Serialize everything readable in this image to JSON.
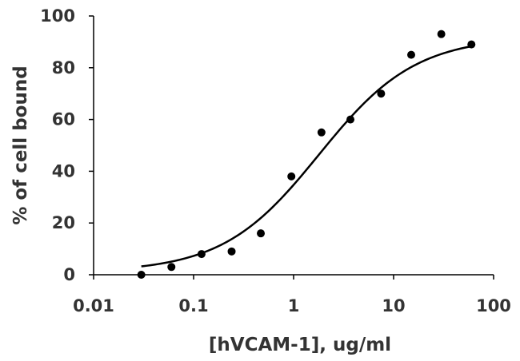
{
  "chart_data": {
    "type": "scatter",
    "xscale": "log",
    "xlim": [
      0.01,
      100
    ],
    "ylim": [
      0,
      100
    ],
    "xticks": [
      0.01,
      0.1,
      1,
      10,
      100
    ],
    "xtick_labels": [
      "0.01",
      "0.1",
      "1",
      "10",
      "100"
    ],
    "yticks": [
      0,
      20,
      40,
      60,
      80,
      100
    ],
    "ytick_labels": [
      "0",
      "20",
      "40",
      "60",
      "80",
      "100"
    ],
    "xlabel": "[hVCAM-1], ug/ml",
    "ylabel": "% of cell bound",
    "grid": false,
    "legend": "none",
    "series": [
      {
        "points": [
          {
            "x": 0.03,
            "y": 0
          },
          {
            "x": 0.06,
            "y": 3
          },
          {
            "x": 0.12,
            "y": 8
          },
          {
            "x": 0.24,
            "y": 9
          },
          {
            "x": 0.47,
            "y": 16
          },
          {
            "x": 0.95,
            "y": 38
          },
          {
            "x": 1.9,
            "y": 55
          },
          {
            "x": 3.7,
            "y": 60
          },
          {
            "x": 7.5,
            "y": 70
          },
          {
            "x": 15,
            "y": 85
          },
          {
            "x": 30,
            "y": 93
          },
          {
            "x": 60,
            "y": 89
          }
        ]
      }
    ],
    "fit_curve": {
      "type": "sigmoid",
      "bottom": 1,
      "top": 92,
      "ec50": 1.8,
      "hill": 0.9,
      "x_range": [
        0.03,
        60
      ]
    },
    "colors": {
      "points": "#000000",
      "curve": "#000000",
      "axes": "#000000",
      "text": "#333333"
    }
  }
}
